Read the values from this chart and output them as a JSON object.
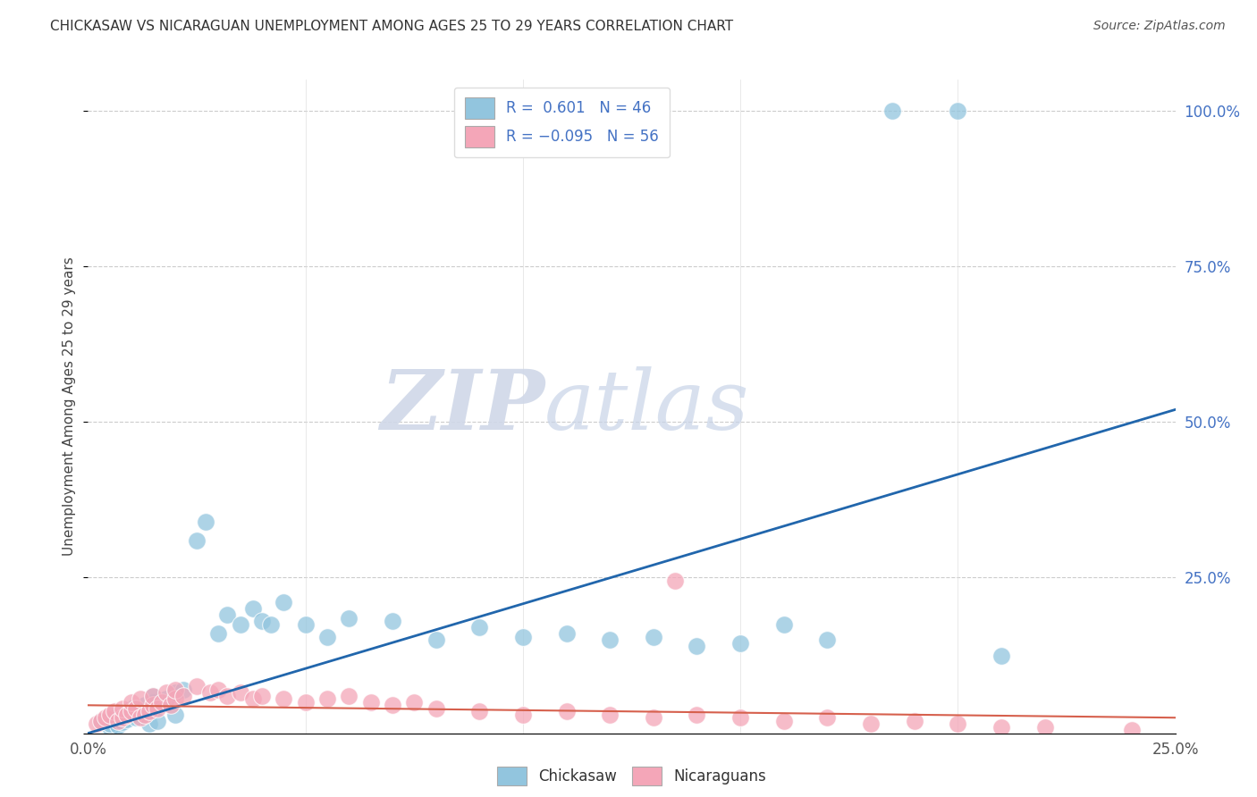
{
  "title": "CHICKASAW VS NICARAGUAN UNEMPLOYMENT AMONG AGES 25 TO 29 YEARS CORRELATION CHART",
  "source": "Source: ZipAtlas.com",
  "ylabel": "Unemployment Among Ages 25 to 29 years",
  "xlim": [
    0.0,
    0.25
  ],
  "ylim": [
    0.0,
    1.05
  ],
  "blue_color": "#92c5de",
  "blue_color_dark": "#2166ac",
  "pink_color": "#f4a6b8",
  "pink_color_dark": "#d6604d",
  "blue_R": 0.601,
  "blue_N": 46,
  "pink_R": -0.095,
  "pink_N": 56,
  "watermark_zip": "ZIP",
  "watermark_atlas": "atlas",
  "background_color": "#ffffff",
  "grid_color": "#cccccc",
  "blue_scatter_x": [
    0.003,
    0.005,
    0.005,
    0.006,
    0.007,
    0.008,
    0.009,
    0.01,
    0.01,
    0.011,
    0.012,
    0.013,
    0.014,
    0.015,
    0.015,
    0.016,
    0.018,
    0.02,
    0.02,
    0.022,
    0.025,
    0.027,
    0.03,
    0.032,
    0.035,
    0.038,
    0.04,
    0.042,
    0.045,
    0.05,
    0.055,
    0.06,
    0.07,
    0.08,
    0.09,
    0.1,
    0.11,
    0.12,
    0.13,
    0.14,
    0.15,
    0.16,
    0.17,
    0.21,
    0.185,
    0.2
  ],
  "blue_scatter_y": [
    0.02,
    0.01,
    0.015,
    0.025,
    0.012,
    0.018,
    0.022,
    0.03,
    0.04,
    0.025,
    0.035,
    0.045,
    0.015,
    0.05,
    0.06,
    0.02,
    0.055,
    0.065,
    0.03,
    0.07,
    0.31,
    0.34,
    0.16,
    0.19,
    0.175,
    0.2,
    0.18,
    0.175,
    0.21,
    0.175,
    0.155,
    0.185,
    0.18,
    0.15,
    0.17,
    0.155,
    0.16,
    0.15,
    0.155,
    0.14,
    0.145,
    0.175,
    0.15,
    0.125,
    1.0,
    1.0
  ],
  "pink_scatter_x": [
    0.002,
    0.003,
    0.004,
    0.005,
    0.006,
    0.007,
    0.008,
    0.008,
    0.009,
    0.01,
    0.01,
    0.011,
    0.012,
    0.012,
    0.013,
    0.014,
    0.015,
    0.015,
    0.016,
    0.017,
    0.018,
    0.019,
    0.02,
    0.02,
    0.022,
    0.025,
    0.028,
    0.03,
    0.032,
    0.035,
    0.038,
    0.04,
    0.045,
    0.05,
    0.055,
    0.06,
    0.065,
    0.07,
    0.075,
    0.08,
    0.09,
    0.1,
    0.11,
    0.12,
    0.13,
    0.14,
    0.15,
    0.16,
    0.17,
    0.18,
    0.19,
    0.2,
    0.21,
    0.22,
    0.135,
    0.24
  ],
  "pink_scatter_y": [
    0.015,
    0.02,
    0.025,
    0.03,
    0.035,
    0.02,
    0.025,
    0.04,
    0.03,
    0.035,
    0.05,
    0.04,
    0.025,
    0.055,
    0.03,
    0.035,
    0.045,
    0.06,
    0.04,
    0.05,
    0.065,
    0.045,
    0.055,
    0.07,
    0.06,
    0.075,
    0.065,
    0.07,
    0.06,
    0.065,
    0.055,
    0.06,
    0.055,
    0.05,
    0.055,
    0.06,
    0.05,
    0.045,
    0.05,
    0.04,
    0.035,
    0.03,
    0.035,
    0.03,
    0.025,
    0.03,
    0.025,
    0.02,
    0.025,
    0.015,
    0.02,
    0.015,
    0.01,
    0.01,
    0.245,
    0.005
  ],
  "blue_trend_x": [
    0.0,
    0.25
  ],
  "blue_trend_y": [
    0.0,
    0.52
  ],
  "pink_trend_x": [
    0.0,
    0.25
  ],
  "pink_trend_y": [
    0.045,
    0.025
  ]
}
